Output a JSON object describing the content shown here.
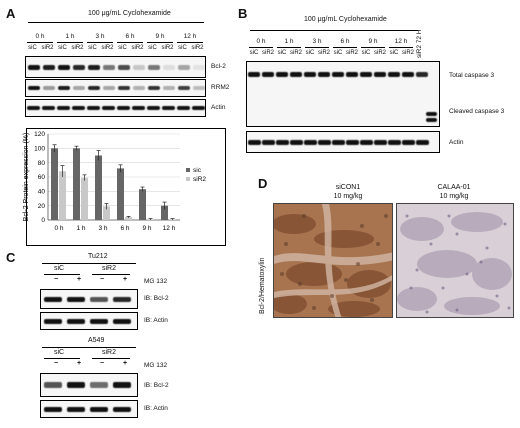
{
  "panelA": {
    "label": "A",
    "treatment": "100 μg/mL Cyclohexamide",
    "times": [
      "0 h",
      "1 h",
      "3 h",
      "6 h",
      "9 h",
      "12 h"
    ],
    "lanes": [
      "siC",
      "siR2",
      "siC",
      "siR2",
      "siC",
      "siR2",
      "siC",
      "siR2",
      "siC",
      "siR2",
      "siC",
      "siR2"
    ],
    "blot_labels": [
      "Bcl-2",
      "RRM2",
      "Actin"
    ]
  },
  "panelB": {
    "label": "B",
    "treatment": "100 μg/mL Cyclohexamide",
    "times": [
      "0 h",
      "1 h",
      "3 h",
      "6 h",
      "9 h",
      "12 h"
    ],
    "lanes": [
      "siC",
      "siR2",
      "siC",
      "siR2",
      "siC",
      "siR2",
      "siC",
      "siR2",
      "siC",
      "siR2",
      "siC",
      "siR2"
    ],
    "extra_lane": "siR2 72 H",
    "blot_labels": [
      "Total caspase 3",
      "Cleaved caspase 3",
      "Actin"
    ]
  },
  "panelC": {
    "label": "C",
    "groups": [
      {
        "cell_line": "Tu212",
        "conds": [
          "siC",
          "siR2"
        ],
        "mg_label": "MG 132",
        "signs": [
          "−",
          "+",
          "−",
          "+"
        ],
        "blots": [
          "IB: Bcl-2",
          "IB: Actin"
        ]
      },
      {
        "cell_line": "A549",
        "conds": [
          "siC",
          "siR2"
        ],
        "mg_label": "MG 132",
        "signs": [
          "−",
          "+",
          "−",
          "+"
        ],
        "blots": [
          "IB: Bcl-2",
          "IB: Actin"
        ]
      }
    ]
  },
  "panelD": {
    "label": "D",
    "ylabel": "Bcl-2/Hematoxylin",
    "images": [
      {
        "title": "siCON1",
        "dose": "10 mg/kg"
      },
      {
        "title": "CALAA-01",
        "dose": "10 mg/kg"
      }
    ]
  },
  "chart_data": {
    "type": "bar",
    "categories": [
      "0 h",
      "1 h",
      "3 h",
      "6 h",
      "9 h",
      "12 h"
    ],
    "series": [
      {
        "name": "sic",
        "values": [
          100,
          100,
          90,
          72,
          43,
          20
        ],
        "errors": [
          5,
          3,
          7,
          5,
          3,
          5
        ],
        "color": "#666666"
      },
      {
        "name": "siR2",
        "values": [
          68,
          59,
          19,
          4,
          1,
          1
        ],
        "errors": [
          8,
          4,
          4,
          1,
          1,
          1
        ],
        "color": "#c8c8c8"
      }
    ],
    "ylabel": "Bcl-2  Protein expression (%)",
    "ylim": [
      0,
      120
    ],
    "yticks": [
      0,
      20,
      40,
      60,
      80,
      100,
      120
    ],
    "grid": true,
    "legend": "right"
  }
}
